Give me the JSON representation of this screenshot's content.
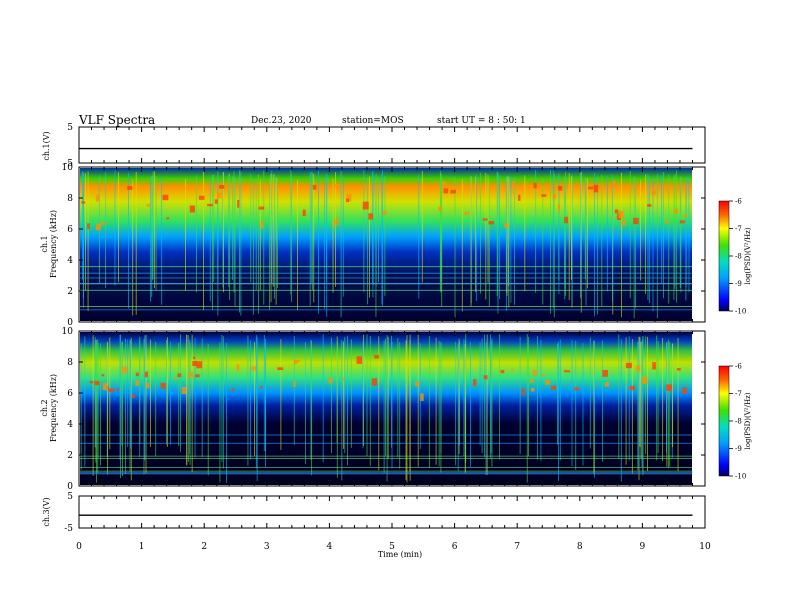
{
  "header": {
    "title": "VLF Spectra",
    "date": "Dec.23, 2020",
    "station": "station=MOS",
    "start_ut": "start  UT =   8 : 50: 1"
  },
  "chart_data": {
    "type": "heatmap",
    "x_axis": {
      "label": "Time  (min)",
      "range": [
        0,
        10
      ],
      "ticks": [
        "0",
        "1",
        "2",
        "3",
        "4",
        "5",
        "6",
        "7",
        "8",
        "9",
        "10"
      ]
    },
    "panels": [
      {
        "id": "ch1-voltage",
        "ylabel": "ch.1(V)",
        "ylim": [
          -5,
          5
        ],
        "ticks": [
          "5",
          "-5"
        ],
        "trace_level": -1
      },
      {
        "id": "ch1-spectrogram",
        "ylabel_top": "ch.1",
        "ylabel_bottom": "Frequency  (kHz)",
        "ylim": [
          0,
          10
        ],
        "ticks": [
          "0",
          "2",
          "4",
          "6",
          "8",
          "10"
        ],
        "colorbar": {
          "label": "log(PSD)(V²/Hz)",
          "range": [
            -10,
            -6
          ],
          "ticks": [
            "-6",
            "-7",
            "-8",
            "-9",
            "-10"
          ]
        }
      },
      {
        "id": "ch2-spectrogram",
        "ylabel_top": "ch.2",
        "ylabel_bottom": "Frequency  (kHz)",
        "ylim": [
          0,
          10
        ],
        "ticks": [
          "0",
          "2",
          "4",
          "6",
          "8",
          "10"
        ],
        "colorbar": {
          "label": "log(PSD)(V²/Hz)",
          "range": [
            -10,
            -6
          ],
          "ticks": [
            "-6",
            "-7",
            "-8",
            "-9",
            "-10"
          ]
        }
      },
      {
        "id": "ch3-voltage",
        "ylabel": "ch.3(V)",
        "ylim": [
          -5,
          5
        ],
        "ticks": [
          "5",
          "-5"
        ],
        "trace_level": -1
      }
    ],
    "data_end_min": 9.8,
    "grid": false
  }
}
